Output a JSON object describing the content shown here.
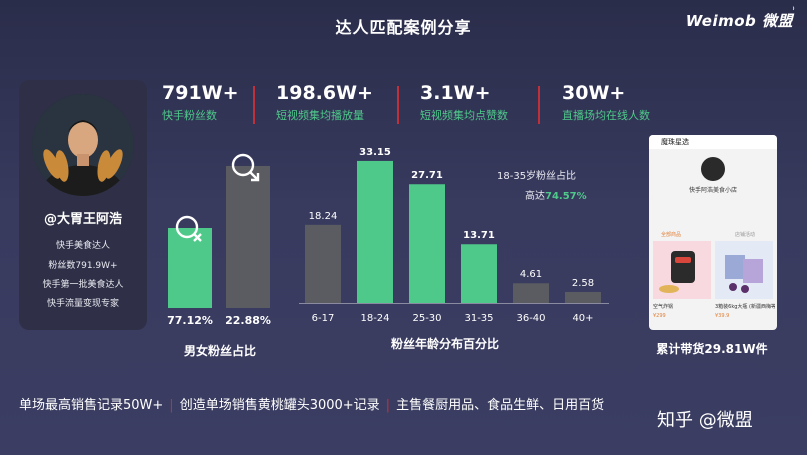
{
  "title": "达人匹配案例分享",
  "brand": {
    "text": "Weimob 微盟"
  },
  "profile": {
    "name": "@大胃王阿浩",
    "lines": [
      "快手美食达人",
      "粉丝数791.9W+",
      "快手第一批美食达人",
      "快手流量变现专家"
    ]
  },
  "stats": [
    {
      "value": "791W+",
      "label": "快手粉丝数"
    },
    {
      "value": "198.6W+",
      "label": "短视频集均播放量"
    },
    {
      "value": "3.1W+",
      "label": "短视频集均点赞数"
    },
    {
      "value": "30W+",
      "label": "直播场均在线人数"
    }
  ],
  "gender": {
    "female_pct": "77.12%",
    "male_pct": "22.88%",
    "caption": "男女粉丝占比",
    "female_value": 77.12,
    "male_value": 22.88
  },
  "age_note": {
    "line1": "18-35岁粉丝占比",
    "prefix": "高达",
    "value": "74.57%"
  },
  "chart_data": {
    "type": "bar",
    "title": "粉丝年龄分布百分比",
    "categories": [
      "6-17",
      "18-24",
      "25-30",
      "31-35",
      "36-40",
      "40+"
    ],
    "values": [
      18.24,
      33.15,
      27.71,
      13.71,
      4.61,
      2.58
    ],
    "value_labels": [
      "18.24",
      "33.15",
      "27.71",
      "13.71",
      "4.61",
      "2.58"
    ],
    "highlight": [
      "18-24",
      "25-30",
      "31-35"
    ],
    "colors": {
      "highlight": "#4ec98a",
      "normal": "#5b5b62"
    },
    "ylim": [
      0,
      35
    ]
  },
  "phone": {
    "header": "魔珠星选",
    "shop_name": "快手阿浩美食小店",
    "tab_active": "全部商品",
    "tab_other": "店铺活动",
    "p1_desc": "空气炸锅",
    "p2_desc": "3箱装6kg大瓶 (新疆西梅等)",
    "p1_price": "¥299",
    "p2_price": "¥39.9"
  },
  "sales_caption": "累计带货29.81W件",
  "bottom": {
    "item1": "单场最高销售记录50W+",
    "item2": "创造单场销售黄桃罐头3000+记录",
    "item3": "主售餐厨用品、食品生鲜、日用百货",
    "sep": "|"
  },
  "watermark": "知乎 @微盟"
}
